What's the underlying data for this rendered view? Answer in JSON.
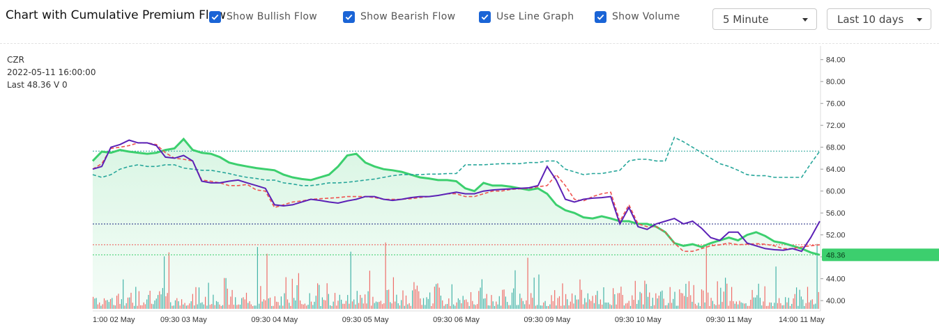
{
  "header": {
    "title": "Chart with Cumulative Premium Flow",
    "options": [
      {
        "label": "Show Bullish Flow",
        "checked": true
      },
      {
        "label": "Show Bearish Flow",
        "checked": true
      },
      {
        "label": "Use Line Graph",
        "checked": true
      },
      {
        "label": "Show Volume",
        "checked": true
      }
    ],
    "interval_select": "5 Minute",
    "range_select": "Last 10 days"
  },
  "legend": {
    "symbol": "CZR",
    "datetime": "2022-05-11 16:00:00",
    "last": "Last 48.36 V 0"
  },
  "colors": {
    "price_line": "#3ccf6e",
    "price_fill": "#d7f5e2",
    "bullish_flow": "#26a69a",
    "bearish_flow": "#ef5350",
    "cumulative": "#5b21b6",
    "volume_up": "#26a69a",
    "volume_down": "#ef5350",
    "last_badge": "#3ccf6e"
  },
  "chart_data": {
    "type": "line",
    "symbol": "CZR",
    "ylim": [
      38.5,
      86.5
    ],
    "y_ticks": [
      "84.00",
      "80.00",
      "76.00",
      "72.00",
      "68.00",
      "64.00",
      "60.00",
      "56.00",
      "52.00",
      "48.00",
      "44.00",
      "40.00"
    ],
    "last_price": "48.36",
    "x_tick_labels": [
      "1:00 02 May",
      "09:30 03 May",
      "09:30 04 May",
      "09:30 05 May",
      "09:30 06 May",
      "09:30 09 May",
      "09:30 10 May",
      "09:30 11 May",
      "14:00 11 May"
    ],
    "x_tick_index": [
      0,
      10,
      20,
      30,
      40,
      50,
      60,
      70,
      78
    ],
    "x_count": 81,
    "reference_lines": [
      {
        "value": 67.3,
        "color": "#26a69a"
      },
      {
        "value": 54.0,
        "color": "#1a237e"
      },
      {
        "value": 50.2,
        "color": "#ef5350"
      },
      {
        "value": 48.36,
        "color": "#3ccf6e"
      }
    ],
    "series": [
      {
        "name": "",
        "style": "area",
        "values": [
          65.5,
          67.2,
          67.0,
          67.5,
          67.2,
          67.0,
          66.8,
          67.0,
          67.5,
          67.8,
          69.5,
          67.5,
          67.0,
          66.8,
          66.2,
          65.2,
          64.8,
          64.5,
          64.2,
          64.0,
          63.8,
          63.0,
          62.5,
          62.2,
          62.0,
          62.5,
          63.0,
          64.5,
          66.5,
          66.8,
          65.2,
          64.5,
          64.0,
          63.8,
          63.5,
          63.0,
          62.5,
          62.3,
          62.0,
          62.0,
          61.8,
          60.5,
          60.0,
          61.5,
          61.0,
          61.0,
          60.8,
          60.5,
          60.2,
          60.5,
          59.5,
          57.5,
          56.5,
          56.0,
          55.2,
          55.0,
          55.4,
          55.0,
          54.5,
          54.5,
          54.0,
          54.0,
          53.5,
          52.5,
          50.5,
          50.0,
          50.3,
          49.8,
          50.5,
          51.0,
          51.5,
          51.0,
          52.0,
          52.5,
          51.8,
          50.8,
          50.5,
          50.0,
          49.5,
          48.8,
          48.36
        ]
      },
      {
        "name": "",
        "style": "dashed",
        "color": "#26a69a",
        "values": [
          63.0,
          62.5,
          63.0,
          64.0,
          64.5,
          64.8,
          64.5,
          64.5,
          64.8,
          64.8,
          64.2,
          64.0,
          63.8,
          63.8,
          63.5,
          63.2,
          62.8,
          62.5,
          62.3,
          62.0,
          62.0,
          61.5,
          61.3,
          61.0,
          61.0,
          61.2,
          61.5,
          61.5,
          61.6,
          61.8,
          62.0,
          62.2,
          62.5,
          62.8,
          63.0,
          63.0,
          63.0,
          63.1,
          63.1,
          63.2,
          63.2,
          64.8,
          64.8,
          64.8,
          64.9,
          65.0,
          65.0,
          65.0,
          65.2,
          65.2,
          65.5,
          65.5,
          64.0,
          63.5,
          63.0,
          63.2,
          63.2,
          63.5,
          63.8,
          65.5,
          65.8,
          65.8,
          65.5,
          65.5,
          69.8,
          69.0,
          68.0,
          67.0,
          66.0,
          65.0,
          64.5,
          63.8,
          63.0,
          62.8,
          62.8,
          62.5,
          62.5,
          62.5,
          62.5,
          65.0,
          67.3
        ]
      },
      {
        "name": "",
        "style": "dashed",
        "color": "#ef5350",
        "values": [
          64.0,
          65.0,
          67.8,
          68.0,
          68.3,
          68.8,
          68.8,
          68.5,
          67.0,
          66.0,
          65.8,
          65.5,
          62.0,
          61.8,
          61.5,
          61.0,
          61.0,
          61.2,
          60.2,
          60.0,
          57.0,
          57.5,
          58.0,
          58.2,
          58.5,
          58.6,
          58.7,
          58.8,
          59.0,
          59.0,
          59.0,
          58.8,
          58.5,
          58.5,
          58.5,
          58.6,
          58.8,
          59.0,
          59.2,
          59.5,
          59.5,
          59.0,
          59.0,
          59.5,
          60.0,
          60.0,
          60.3,
          60.4,
          60.5,
          60.8,
          61.0,
          63.0,
          61.0,
          58.5,
          58.2,
          59.0,
          59.5,
          59.8,
          54.5,
          57.5,
          54.0,
          53.5,
          53.5,
          52.5,
          50.5,
          49.0,
          49.0,
          49.5,
          50.0,
          50.2,
          50.5,
          50.2,
          50.3,
          50.4,
          50.3,
          50.0,
          49.5,
          49.5,
          49.8,
          50.0,
          50.2
        ]
      },
      {
        "name": "",
        "style": "solid",
        "color": "#5b21b6",
        "values": [
          64.0,
          64.5,
          68.0,
          68.5,
          69.3,
          68.8,
          68.8,
          68.3,
          66.2,
          66.0,
          66.5,
          65.5,
          61.8,
          61.5,
          61.5,
          61.8,
          62.0,
          61.5,
          61.0,
          60.5,
          57.5,
          57.3,
          57.5,
          58.0,
          58.5,
          58.3,
          58.0,
          57.8,
          58.2,
          58.5,
          59.0,
          59.0,
          58.5,
          58.3,
          58.5,
          58.8,
          59.0,
          59.0,
          59.2,
          59.5,
          59.8,
          59.5,
          59.5,
          60.0,
          60.2,
          60.3,
          60.4,
          60.5,
          60.6,
          61.0,
          64.5,
          62.0,
          58.5,
          58.0,
          58.5,
          58.7,
          58.8,
          59.0,
          54.0,
          57.0,
          53.5,
          53.0,
          54.0,
          54.5,
          55.0,
          54.0,
          54.5,
          53.2,
          51.5,
          51.0,
          52.5,
          52.5,
          50.5,
          50.0,
          49.5,
          49.3,
          49.2,
          49.5,
          49.0,
          51.5,
          54.5
        ]
      }
    ],
    "volume": {
      "count": 460,
      "ylim": [
        0,
        120
      ]
    }
  }
}
